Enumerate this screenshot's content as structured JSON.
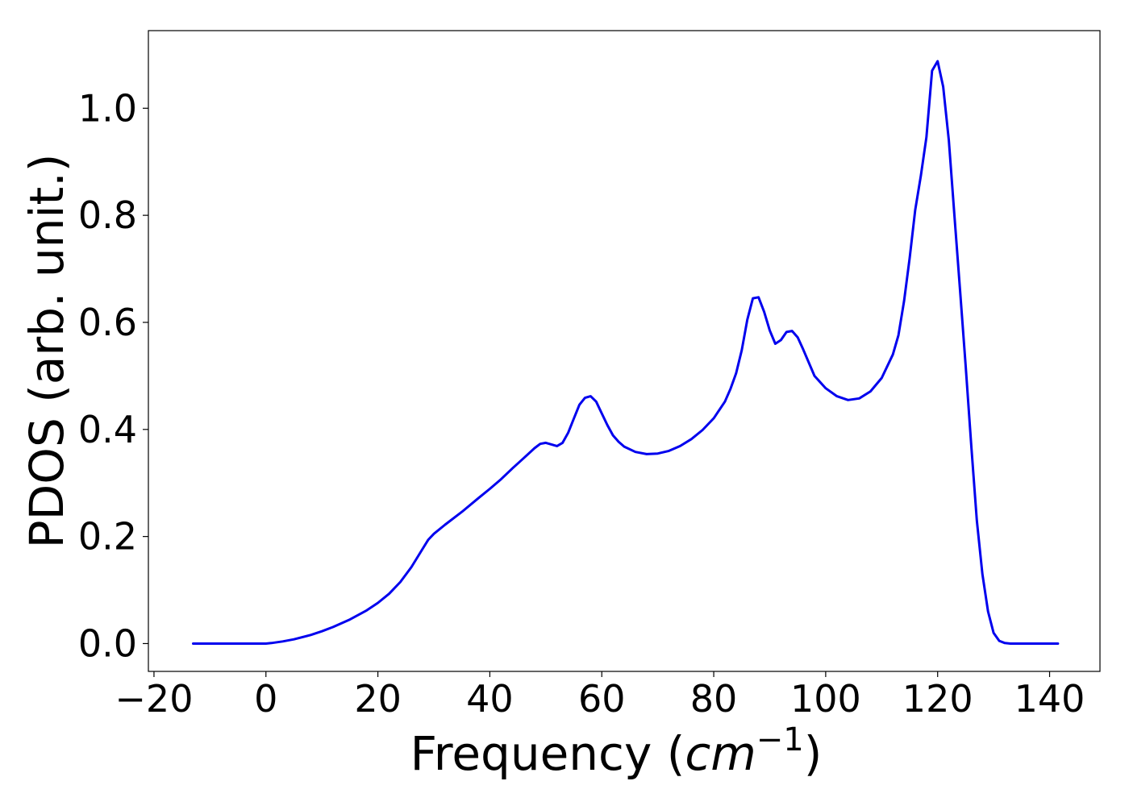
{
  "chart_data": {
    "type": "line",
    "xlabel": "Frequency",
    "xlabel_unit_base": "cm",
    "xlabel_unit_exp": "−1",
    "ylabel": "PDOS (arb. unit.)",
    "xlim": [
      -21,
      149
    ],
    "ylim": [
      -0.052,
      1.145
    ],
    "xticks": [
      -20,
      0,
      20,
      40,
      60,
      80,
      100,
      120,
      140
    ],
    "xtick_labels": [
      "−20",
      "0",
      "20",
      "40",
      "60",
      "80",
      "100",
      "120",
      "140"
    ],
    "yticks": [
      0.0,
      0.2,
      0.4,
      0.6,
      0.8,
      1.0
    ],
    "ytick_labels": [
      "0.0",
      "0.2",
      "0.4",
      "0.6",
      "0.8",
      "1.0"
    ],
    "grid": false,
    "series": [
      {
        "color": "#0000ee",
        "x": [
          -13,
          -10,
          -5,
          0,
          1,
          3,
          5,
          8,
          10,
          12,
          15,
          18,
          20,
          22,
          24,
          26,
          28,
          29,
          30,
          32,
          35,
          38,
          40,
          42,
          44,
          46,
          48,
          49,
          50,
          51,
          52,
          53,
          54,
          55,
          56,
          57,
          58,
          59,
          60,
          61,
          62,
          63,
          64,
          66,
          68,
          70,
          72,
          74,
          76,
          78,
          80,
          82,
          83,
          84,
          85,
          86,
          87,
          88,
          89,
          90,
          91,
          92,
          93,
          94,
          95,
          96,
          98,
          100,
          102,
          104,
          106,
          108,
          110,
          112,
          113,
          114,
          115,
          116,
          117,
          118,
          119,
          120,
          121,
          122,
          123,
          124,
          125,
          126,
          127,
          128,
          129,
          130,
          131,
          132,
          133,
          135,
          138,
          141.5
        ],
        "y": [
          0,
          0,
          0,
          0,
          0.001,
          0.004,
          0.008,
          0.016,
          0.023,
          0.031,
          0.045,
          0.062,
          0.076,
          0.093,
          0.115,
          0.143,
          0.177,
          0.194,
          0.205,
          0.222,
          0.246,
          0.272,
          0.289,
          0.307,
          0.327,
          0.346,
          0.365,
          0.373,
          0.375,
          0.372,
          0.369,
          0.375,
          0.394,
          0.42,
          0.446,
          0.459,
          0.462,
          0.452,
          0.43,
          0.408,
          0.389,
          0.377,
          0.368,
          0.358,
          0.354,
          0.355,
          0.36,
          0.369,
          0.382,
          0.399,
          0.421,
          0.452,
          0.476,
          0.505,
          0.548,
          0.605,
          0.645,
          0.647,
          0.62,
          0.585,
          0.56,
          0.567,
          0.582,
          0.584,
          0.572,
          0.549,
          0.5,
          0.477,
          0.462,
          0.455,
          0.458,
          0.471,
          0.496,
          0.54,
          0.576,
          0.64,
          0.72,
          0.81,
          0.874,
          0.946,
          1.07,
          1.088,
          1.04,
          0.94,
          0.8,
          0.66,
          0.52,
          0.37,
          0.23,
          0.13,
          0.06,
          0.02,
          0.005,
          0.001,
          0,
          0,
          0,
          0
        ]
      }
    ]
  }
}
